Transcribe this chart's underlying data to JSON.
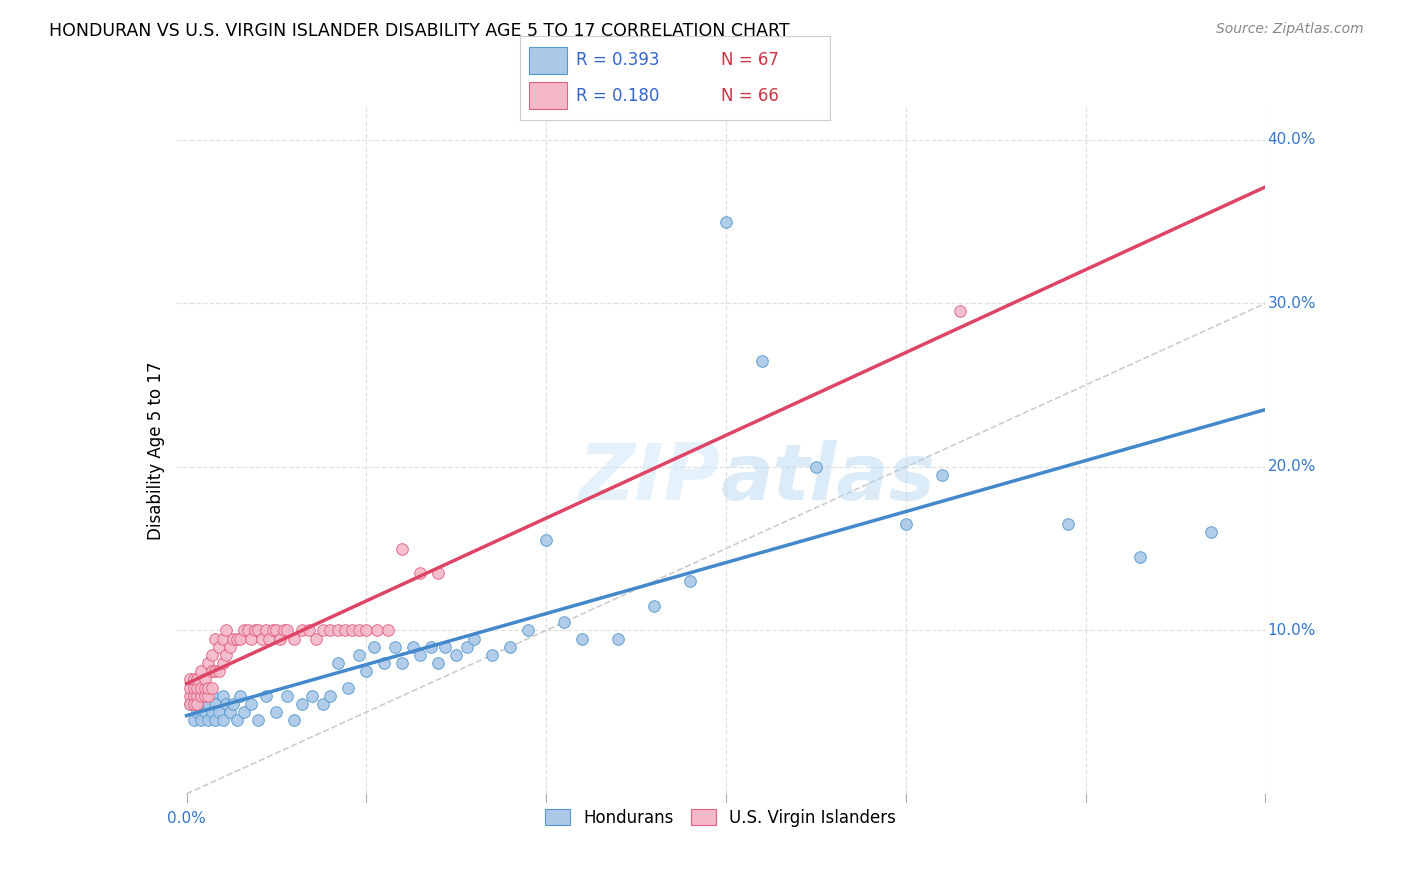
{
  "title": "HONDURAN VS U.S. VIRGIN ISLANDER DISABILITY AGE 5 TO 17 CORRELATION CHART",
  "source": "Source: ZipAtlas.com",
  "ylabel": "Disability Age 5 to 17",
  "r_hondurans": 0.393,
  "n_hondurans": 67,
  "r_virgin": 0.18,
  "n_virgin": 66,
  "color_hondurans_fill": "#aac8e8",
  "color_hondurans_edge": "#5599cc",
  "color_virgin_fill": "#f4b8c8",
  "color_virgin_edge": "#e06080",
  "color_trend_hondurans": "#4488cc",
  "color_trend_virgin": "#dd4466",
  "color_diagonal": "#cccccc",
  "color_grid": "#e0e0e0",
  "xlim": [
    0.0,
    0.3
  ],
  "ylim": [
    0.0,
    0.42
  ],
  "blue_scatter_x": [
    0.001,
    0.002,
    0.002,
    0.003,
    0.003,
    0.004,
    0.004,
    0.005,
    0.005,
    0.006,
    0.006,
    0.007,
    0.007,
    0.008,
    0.008,
    0.009,
    0.01,
    0.01,
    0.011,
    0.012,
    0.013,
    0.014,
    0.015,
    0.016,
    0.018,
    0.02,
    0.022,
    0.025,
    0.028,
    0.03,
    0.032,
    0.035,
    0.038,
    0.04,
    0.042,
    0.045,
    0.048,
    0.05,
    0.052,
    0.055,
    0.058,
    0.06,
    0.063,
    0.065,
    0.068,
    0.07,
    0.072,
    0.075,
    0.078,
    0.08,
    0.085,
    0.09,
    0.095,
    0.1,
    0.105,
    0.11,
    0.12,
    0.13,
    0.14,
    0.15,
    0.16,
    0.175,
    0.2,
    0.21,
    0.245,
    0.265,
    0.285
  ],
  "blue_scatter_y": [
    0.055,
    0.045,
    0.06,
    0.05,
    0.065,
    0.055,
    0.045,
    0.06,
    0.05,
    0.055,
    0.045,
    0.06,
    0.05,
    0.055,
    0.045,
    0.05,
    0.06,
    0.045,
    0.055,
    0.05,
    0.055,
    0.045,
    0.06,
    0.05,
    0.055,
    0.045,
    0.06,
    0.05,
    0.06,
    0.045,
    0.055,
    0.06,
    0.055,
    0.06,
    0.08,
    0.065,
    0.085,
    0.075,
    0.09,
    0.08,
    0.09,
    0.08,
    0.09,
    0.085,
    0.09,
    0.08,
    0.09,
    0.085,
    0.09,
    0.095,
    0.085,
    0.09,
    0.1,
    0.155,
    0.105,
    0.095,
    0.095,
    0.115,
    0.13,
    0.35,
    0.265,
    0.2,
    0.165,
    0.195,
    0.165,
    0.145,
    0.16
  ],
  "pink_scatter_x": [
    0.001,
    0.001,
    0.001,
    0.001,
    0.002,
    0.002,
    0.002,
    0.002,
    0.003,
    0.003,
    0.003,
    0.003,
    0.004,
    0.004,
    0.004,
    0.005,
    0.005,
    0.005,
    0.006,
    0.006,
    0.006,
    0.007,
    0.007,
    0.007,
    0.008,
    0.008,
    0.009,
    0.009,
    0.01,
    0.01,
    0.011,
    0.011,
    0.012,
    0.013,
    0.014,
    0.015,
    0.016,
    0.017,
    0.018,
    0.019,
    0.02,
    0.021,
    0.022,
    0.023,
    0.024,
    0.025,
    0.026,
    0.027,
    0.028,
    0.03,
    0.032,
    0.034,
    0.036,
    0.038,
    0.04,
    0.042,
    0.044,
    0.046,
    0.048,
    0.05,
    0.053,
    0.056,
    0.06,
    0.065,
    0.07,
    0.215
  ],
  "pink_scatter_y": [
    0.06,
    0.055,
    0.065,
    0.07,
    0.06,
    0.055,
    0.065,
    0.07,
    0.06,
    0.055,
    0.065,
    0.07,
    0.06,
    0.065,
    0.075,
    0.06,
    0.065,
    0.07,
    0.06,
    0.065,
    0.08,
    0.065,
    0.075,
    0.085,
    0.075,
    0.095,
    0.075,
    0.09,
    0.08,
    0.095,
    0.085,
    0.1,
    0.09,
    0.095,
    0.095,
    0.095,
    0.1,
    0.1,
    0.095,
    0.1,
    0.1,
    0.095,
    0.1,
    0.095,
    0.1,
    0.1,
    0.095,
    0.1,
    0.1,
    0.095,
    0.1,
    0.1,
    0.095,
    0.1,
    0.1,
    0.1,
    0.1,
    0.1,
    0.1,
    0.1,
    0.1,
    0.1,
    0.15,
    0.135,
    0.135,
    0.295
  ]
}
